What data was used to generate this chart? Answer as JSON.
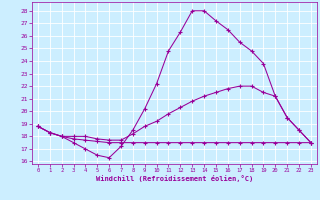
{
  "xlabel": "Windchill (Refroidissement éolien,°C)",
  "xlim": [
    -0.5,
    23.5
  ],
  "ylim": [
    15.8,
    28.7
  ],
  "yticks": [
    16,
    17,
    18,
    19,
    20,
    21,
    22,
    23,
    24,
    25,
    26,
    27,
    28
  ],
  "xticks": [
    0,
    1,
    2,
    3,
    4,
    5,
    6,
    7,
    8,
    9,
    10,
    11,
    12,
    13,
    14,
    15,
    16,
    17,
    18,
    19,
    20,
    21,
    22,
    23
  ],
  "background_color": "#cceeff",
  "line_color": "#990099",
  "line1_x": [
    0,
    1,
    2,
    3,
    4,
    5,
    6,
    7,
    8,
    9,
    10,
    11,
    12,
    13,
    14,
    15,
    16,
    17,
    18,
    19,
    20,
    21,
    22,
    23
  ],
  "line1_y": [
    18.8,
    18.3,
    18.0,
    17.5,
    17.0,
    16.5,
    16.3,
    17.2,
    18.5,
    20.2,
    22.2,
    24.8,
    26.3,
    28.0,
    28.0,
    27.2,
    26.5,
    25.5,
    24.8,
    23.8,
    21.2,
    19.5,
    18.5,
    17.5
  ],
  "line2_x": [
    0,
    1,
    2,
    3,
    4,
    5,
    6,
    7,
    8,
    9,
    10,
    11,
    12,
    13,
    14,
    15,
    16,
    17,
    18,
    19,
    20,
    21,
    22,
    23
  ],
  "line2_y": [
    18.8,
    18.3,
    18.0,
    18.0,
    18.0,
    17.8,
    17.7,
    17.7,
    18.2,
    18.8,
    19.2,
    19.8,
    20.3,
    20.8,
    21.2,
    21.5,
    21.8,
    22.0,
    22.0,
    21.5,
    21.2,
    19.5,
    18.5,
    17.5
  ],
  "line3_x": [
    0,
    1,
    2,
    3,
    4,
    5,
    6,
    7,
    8,
    9,
    10,
    11,
    12,
    13,
    14,
    15,
    16,
    17,
    18,
    19,
    20,
    21,
    22,
    23
  ],
  "line3_y": [
    18.8,
    18.3,
    18.0,
    17.8,
    17.7,
    17.6,
    17.5,
    17.5,
    17.5,
    17.5,
    17.5,
    17.5,
    17.5,
    17.5,
    17.5,
    17.5,
    17.5,
    17.5,
    17.5,
    17.5,
    17.5,
    17.5,
    17.5,
    17.5
  ]
}
